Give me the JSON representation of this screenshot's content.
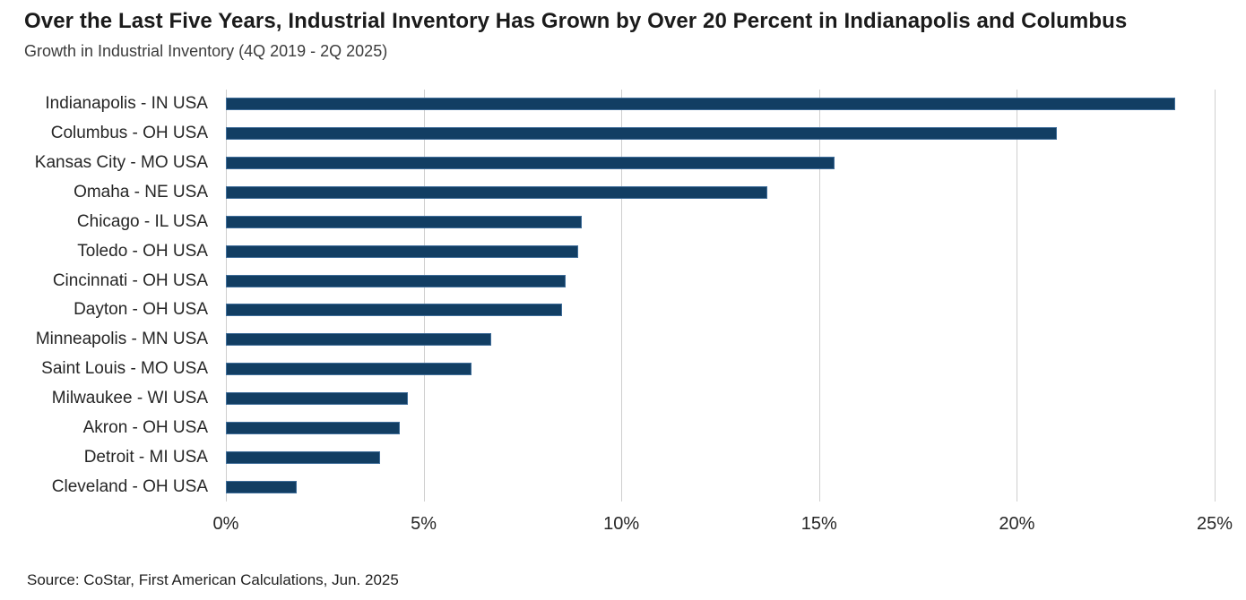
{
  "header": {
    "title": "Over the Last Five Years, Industrial Inventory Has Grown by Over 20 Percent in Indianapolis and Columbus",
    "subtitle": "Growth in Industrial Inventory (4Q 2019 - 2Q 2025)"
  },
  "chart_data": {
    "type": "bar",
    "orientation": "horizontal",
    "title": "Over the Last Five Years, Industrial Inventory Has Grown by Over 20 Percent in Indianapolis and Columbus",
    "subtitle": "Growth in Industrial Inventory (4Q 2019 - 2Q 2025)",
    "categories": [
      "Indianapolis - IN USA",
      "Columbus - OH USA",
      "Kansas City - MO USA",
      "Omaha - NE USA",
      "Chicago - IL USA",
      "Toledo - OH USA",
      "Cincinnati - OH USA",
      "Dayton - OH USA",
      "Minneapolis - MN USA",
      "Saint Louis - MO USA",
      "Milwaukee - WI USA",
      "Akron - OH USA",
      "Detroit - MI USA",
      "Cleveland - OH USA"
    ],
    "values": [
      24.0,
      21.0,
      15.4,
      13.7,
      9.0,
      8.9,
      8.6,
      8.5,
      6.7,
      6.2,
      4.6,
      4.4,
      3.9,
      1.8
    ],
    "unit": "%",
    "xlabel": "",
    "ylabel": "",
    "xlim": [
      0,
      25
    ],
    "xticks": [
      {
        "value": 0,
        "label": "0%"
      },
      {
        "value": 5,
        "label": "5%"
      },
      {
        "value": 10,
        "label": "10%"
      },
      {
        "value": 15,
        "label": "15%"
      },
      {
        "value": 20,
        "label": "20%"
      },
      {
        "value": 25,
        "label": "25%"
      }
    ],
    "grid": "vertical-only",
    "legend": "none",
    "bar_color": "#123e63",
    "bar_border_color": "#3f6d99",
    "gridline_color": "#cfcfcf"
  },
  "source": "Source: CoStar, First American Calculations, Jun. 2025"
}
